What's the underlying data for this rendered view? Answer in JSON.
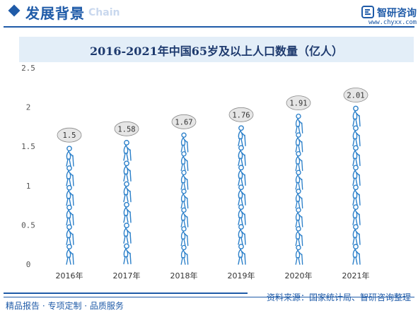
{
  "header": {
    "title": "发展背景",
    "watermark": "Chain",
    "logo_text": "智研咨询",
    "logo_url": "www.chyxx.com"
  },
  "footer": {
    "left": "精品报告 · 专项定制 · 品质服务",
    "right": "资料来源：国家统计局、智研咨询整理"
  },
  "colors": {
    "brand": "#1f5ba8",
    "pictogram": "#2a7fc9",
    "bubble_fill": "#e6e6e6",
    "bubble_stroke": "#8a8a8a"
  },
  "chart_data": {
    "type": "bar",
    "style": "pictogram",
    "title": "2016-2021年中国65岁及以上人口数量（亿人）",
    "categories": [
      "2016年",
      "2017年",
      "2018年",
      "2019年",
      "2020年",
      "2021年"
    ],
    "values": [
      1.5,
      1.58,
      1.67,
      1.76,
      1.91,
      2.01
    ],
    "data_labels": [
      "1.5",
      "1.58",
      "1.67",
      "1.76",
      "1.91",
      "2.01"
    ],
    "y_ticks": [
      "0",
      "0.5",
      "1",
      "1.5",
      "2",
      "2.5"
    ],
    "ylim": [
      0,
      2.5
    ],
    "grid": false,
    "legend": "none",
    "icon": "elderly-person-with-cane-icon"
  }
}
